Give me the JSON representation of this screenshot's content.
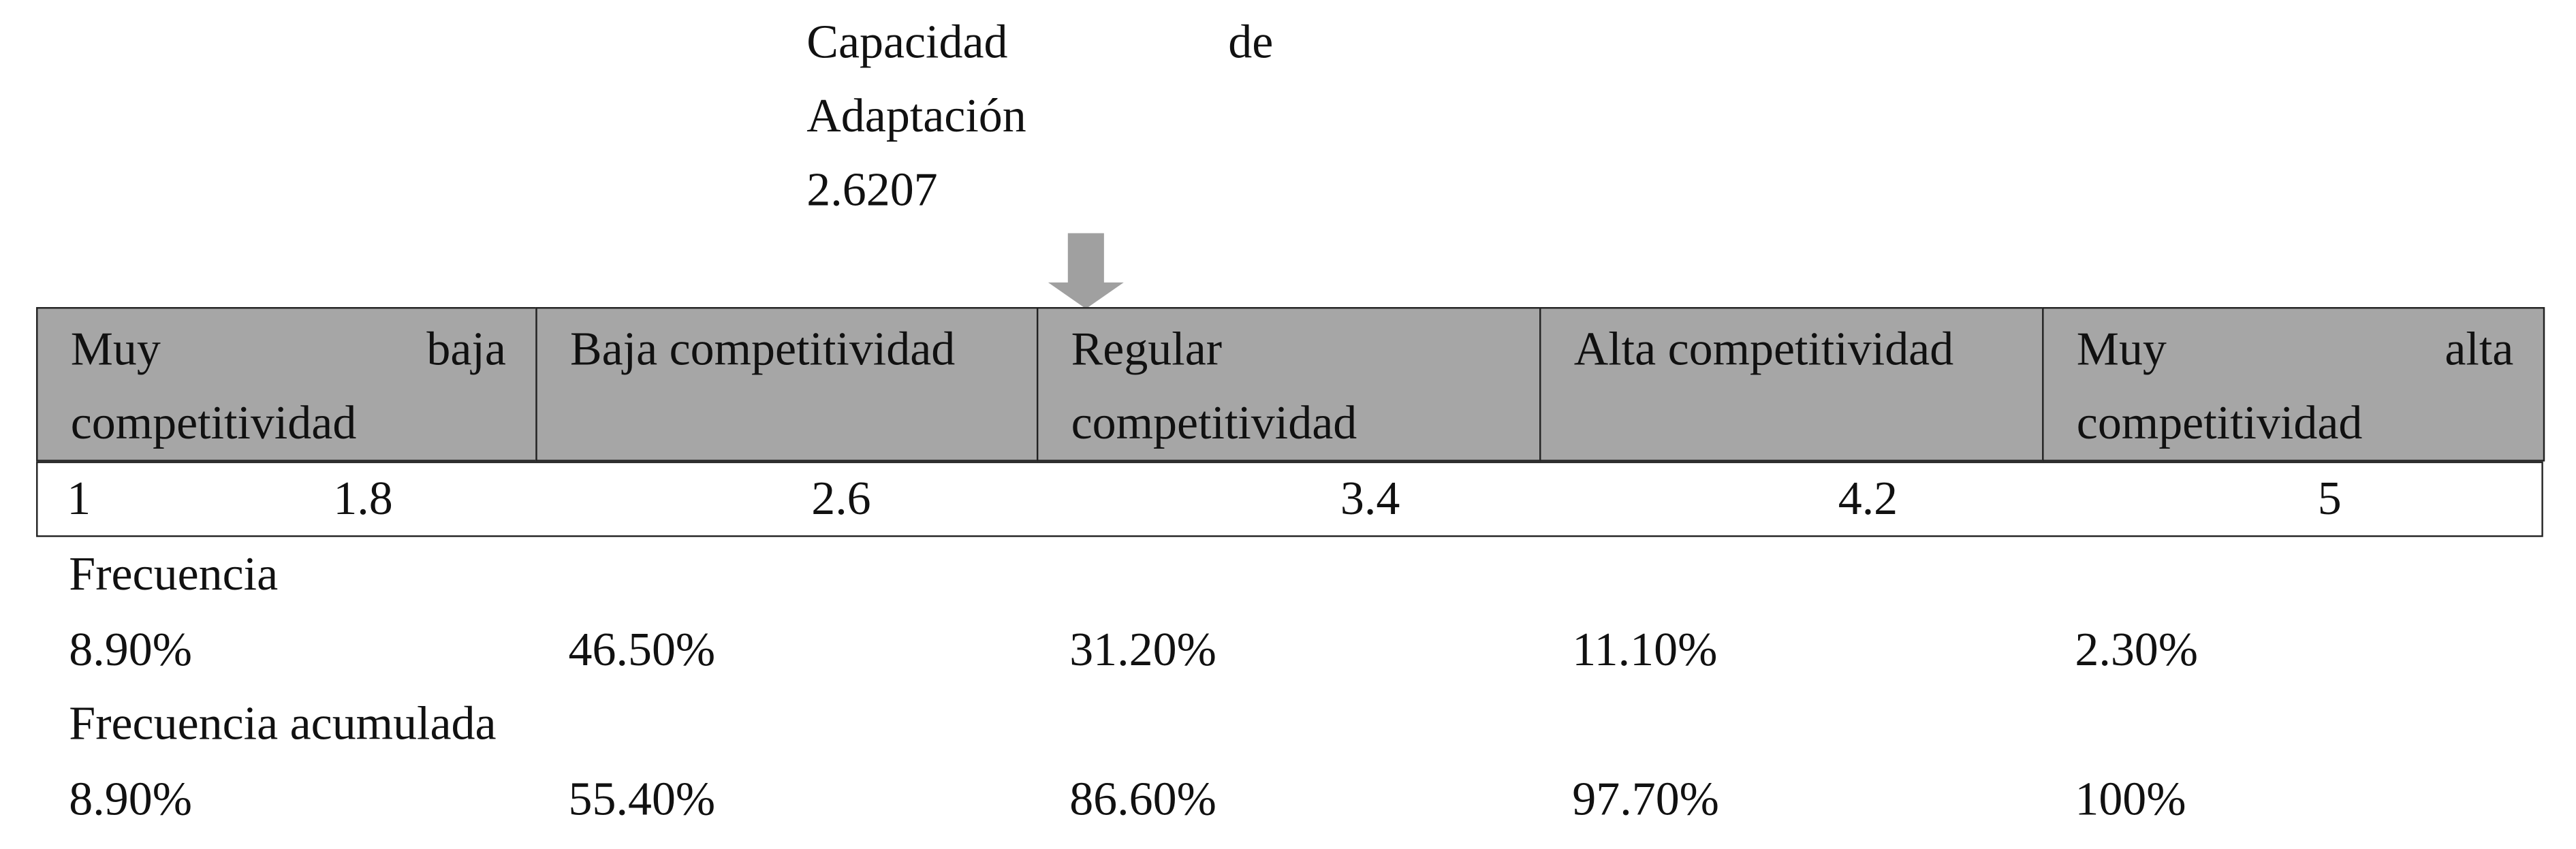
{
  "annotation": {
    "label": "Capacidad de Adaptación",
    "value": "2.6207"
  },
  "table": {
    "header": [
      "Muy baja competitividad",
      "Baja competitividad",
      "Regular competitividad",
      "Alta competitividad",
      "Muy alta competitividad"
    ],
    "scale": [
      "1",
      "1.8",
      "2.6",
      "3.4",
      "4.2",
      "5"
    ]
  },
  "frequency": {
    "label": "Frecuencia",
    "values": [
      "8.90%",
      "46.50%",
      "31.20%",
      "11.10%",
      "2.30%"
    ]
  },
  "cumulative": {
    "label": "Frecuencia acumulada",
    "values": [
      "8.90%",
      "55.40%",
      "86.60%",
      "97.70%",
      "100%"
    ]
  }
}
